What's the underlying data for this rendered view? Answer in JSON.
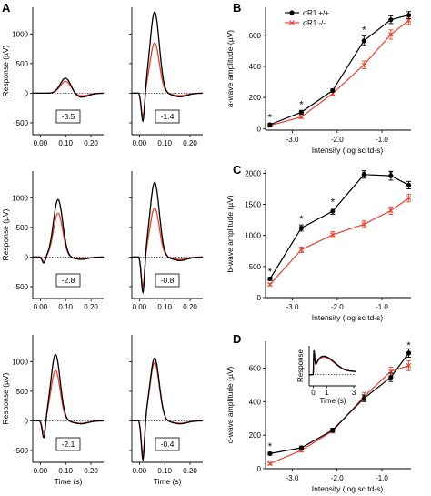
{
  "colors": {
    "wildtype": "#000000",
    "knockout": "#e8412f"
  },
  "panel_labels": {
    "a": "A",
    "b": "B",
    "c": "C",
    "d": "D"
  },
  "panel_a": {
    "ylabel": "Response (µV)",
    "xlabel": "Time (s)",
    "x_ticks": [
      "0.00",
      "0.10",
      "0.20"
    ],
    "y_ticks": [
      "-500",
      "0",
      "500",
      "1000"
    ],
    "intensities": [
      "-3.5",
      "-1.4",
      "-2.8",
      "-0.8",
      "-2.1",
      "-0.4"
    ]
  },
  "legend": {
    "wildtype": "σR1 +/+",
    "knockout": "σR1 -/-"
  },
  "chart_data": [
    {
      "panel": "A",
      "type": "line",
      "xlabel": "Time (s)",
      "ylabel": "Response (µV)",
      "xlim": [
        -0.03,
        0.25
      ],
      "ylim": [
        -700,
        1450
      ],
      "traces": [
        {
          "intensity": "-3.5",
          "series": [
            {
              "name": "σR1 +/+",
              "a_wave": 0,
              "peak_time": 0.1,
              "peak": 260,
              "trough": -70
            },
            {
              "name": "σR1 -/-",
              "a_wave": 0,
              "peak_time": 0.1,
              "peak": 205,
              "trough": -45
            }
          ]
        },
        {
          "intensity": "-1.4",
          "series": [
            {
              "name": "σR1 +/+",
              "a_wave": -530,
              "peak_time": 0.06,
              "peak": 1370,
              "trough": -60
            },
            {
              "name": "σR1 -/-",
              "a_wave": -430,
              "peak_time": 0.06,
              "peak": 850,
              "trough": -40
            }
          ]
        },
        {
          "intensity": "-2.8",
          "series": [
            {
              "name": "σR1 +/+",
              "a_wave": -110,
              "peak_time": 0.07,
              "peak": 970,
              "trough": -40
            },
            {
              "name": "σR1 -/-",
              "a_wave": -80,
              "peak_time": 0.07,
              "peak": 740,
              "trough": -30
            }
          ]
        },
        {
          "intensity": "-0.8",
          "series": [
            {
              "name": "σR1 +/+",
              "a_wave": -650,
              "peak_time": 0.06,
              "peak": 1260,
              "trough": -60
            },
            {
              "name": "σR1 -/-",
              "a_wave": -530,
              "peak_time": 0.06,
              "peak": 830,
              "trough": -40
            }
          ]
        },
        {
          "intensity": "-2.1",
          "series": [
            {
              "name": "σR1 +/+",
              "a_wave": -330,
              "peak_time": 0.06,
              "peak": 1120,
              "trough": -50
            },
            {
              "name": "σR1 -/-",
              "a_wave": -240,
              "peak_time": 0.06,
              "peak": 850,
              "trough": -40
            }
          ]
        },
        {
          "intensity": "-0.4",
          "series": [
            {
              "name": "σR1 +/+",
              "a_wave": -700,
              "peak_time": 0.06,
              "peak": 1060,
              "trough": -50
            },
            {
              "name": "σR1 -/-",
              "a_wave": -600,
              "peak_time": 0.06,
              "peak": 980,
              "trough": -40
            }
          ]
        }
      ]
    },
    {
      "panel": "B",
      "type": "line",
      "xlabel": "Intensity (log sc td-s)",
      "ylabel": "a-wave amplitude (µV)",
      "xlim": [
        -3.6,
        -0.35
      ],
      "ylim": [
        -10,
        780
      ],
      "x_ticks": [
        "-3.0",
        "-2.0",
        "-1.0"
      ],
      "y_ticks": [
        "0",
        "200",
        "400",
        "600"
      ],
      "x": [
        -3.5,
        -2.8,
        -2.1,
        -1.4,
        -0.8,
        -0.4
      ],
      "series": [
        {
          "name": "σR1 +/+",
          "values": [
            25,
            105,
            245,
            565,
            700,
            730
          ],
          "errors": [
            8,
            12,
            10,
            30,
            25,
            22
          ]
        },
        {
          "name": "σR1 -/-",
          "values": [
            20,
            75,
            225,
            410,
            605,
            695
          ],
          "errors": [
            5,
            10,
            12,
            25,
            30,
            25
          ]
        }
      ],
      "significant_x": [
        -3.5,
        -2.8,
        -1.4
      ]
    },
    {
      "panel": "C",
      "type": "line",
      "xlabel": "Intensity (log sc td-s)",
      "ylabel": "b-wave amplitude (µV)",
      "xlim": [
        -3.6,
        -0.35
      ],
      "ylim": [
        0,
        2050
      ],
      "x_ticks": [
        "-3.0",
        "-2.0",
        "-1.0"
      ],
      "y_ticks": [
        "0",
        "500",
        "1000",
        "1500",
        "2000"
      ],
      "x": [
        -3.5,
        -2.8,
        -2.1,
        -1.4,
        -0.8,
        -0.4
      ],
      "series": [
        {
          "name": "σR1 +/+",
          "values": [
            300,
            1120,
            1390,
            1980,
            1960,
            1810
          ],
          "errors": [
            25,
            50,
            50,
            60,
            70,
            60
          ]
        },
        {
          "name": "σR1 -/-",
          "values": [
            210,
            770,
            1010,
            1180,
            1400,
            1600
          ],
          "errors": [
            20,
            45,
            50,
            55,
            60,
            60
          ]
        }
      ],
      "significant_x": [
        -3.5,
        -2.8,
        -2.1,
        -1.4,
        -0.8
      ]
    },
    {
      "panel": "D",
      "type": "line",
      "xlabel": "Intensity (log sc td-s)",
      "ylabel": "c-wave amplitude (µV)",
      "xlim": [
        -3.6,
        -0.35
      ],
      "ylim": [
        0,
        760
      ],
      "x_ticks": [
        "-3.0",
        "-2.0",
        "-1.0"
      ],
      "y_ticks": [
        "0",
        "200",
        "400",
        "600"
      ],
      "x": [
        -3.5,
        -2.8,
        -2.1,
        -1.4,
        -0.8,
        -0.4
      ],
      "series": [
        {
          "name": "σR1 +/+",
          "values": [
            90,
            125,
            230,
            420,
            545,
            690
          ],
          "errors": [
            8,
            10,
            12,
            20,
            25,
            25
          ]
        },
        {
          "name": "σR1 -/-",
          "values": [
            30,
            110,
            225,
            430,
            580,
            615
          ],
          "errors": [
            6,
            10,
            12,
            25,
            25,
            30
          ]
        }
      ],
      "significant_x": [
        -3.5,
        -0.4
      ]
    },
    {
      "panel": "D-inset",
      "type": "line",
      "xlabel": "Time (s)",
      "ylabel": "Response",
      "x_ticks": [
        "0",
        "1",
        "3"
      ],
      "series_shape": "c-wave"
    }
  ]
}
